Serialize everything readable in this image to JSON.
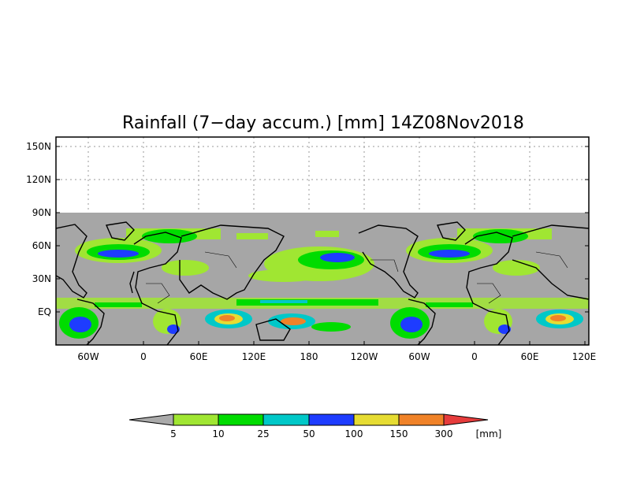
{
  "title": "Rainfall (7−day accum.) [mm] 14Z08Nov2018",
  "y_ticks": [
    "150N",
    "120N",
    "90N",
    "60N",
    "30N",
    "EQ"
  ],
  "x_ticks": [
    "60W",
    "0",
    "60E",
    "120E",
    "180",
    "120W",
    "60W",
    "0",
    "60E",
    "120E"
  ],
  "colorbar": {
    "labels": [
      "5",
      "10",
      "25",
      "50",
      "100",
      "150",
      "300"
    ],
    "unit": "[mm]",
    "colors": {
      "below": "#aaaaaa",
      "bins": [
        "#a0e632",
        "#00dc00",
        "#00c8c8",
        "#1e3cff",
        "#e6dc32",
        "#f08228"
      ],
      "above": "#e63c3c"
    }
  },
  "map_colors": {
    "no_rain": "#a6a6a6",
    "coast": "#000000"
  }
}
